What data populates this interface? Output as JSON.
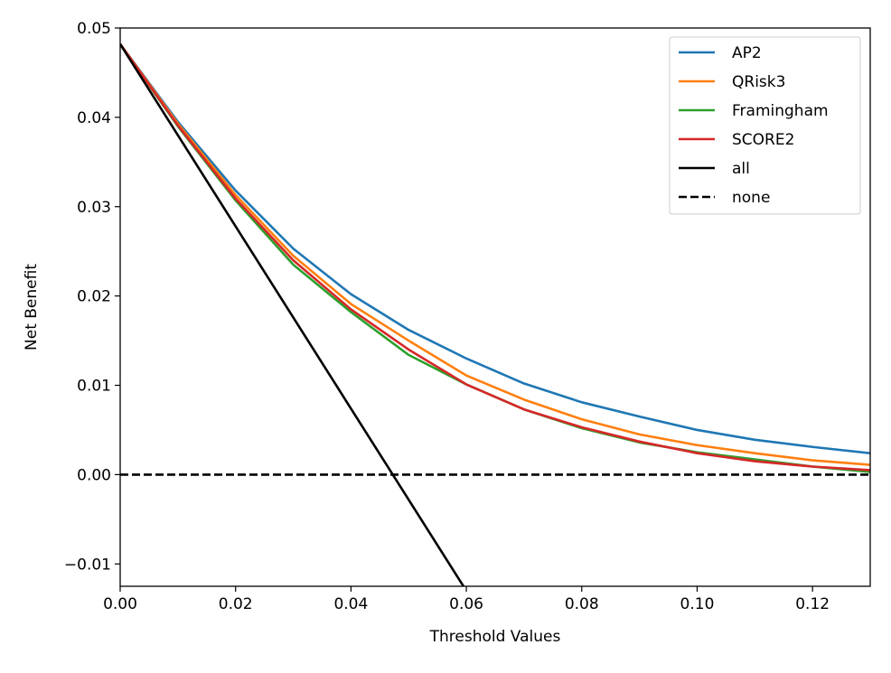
{
  "chart_data": {
    "type": "line",
    "title": "",
    "xlabel": "Threshold Values",
    "ylabel": "Net Benefit",
    "xlim": [
      0.0,
      0.13
    ],
    "ylim": [
      -0.0125,
      0.05
    ],
    "xticks": [
      0.0,
      0.02,
      0.04,
      0.06,
      0.08,
      0.1,
      0.12
    ],
    "xtick_labels": [
      "0.00",
      "0.02",
      "0.04",
      "0.06",
      "0.08",
      "0.10",
      "0.12"
    ],
    "yticks": [
      -0.01,
      0.0,
      0.01,
      0.02,
      0.03,
      0.04,
      0.05
    ],
    "ytick_labels": [
      "−0.01",
      "0.00",
      "0.01",
      "0.02",
      "0.03",
      "0.04",
      "0.05"
    ],
    "grid": false,
    "legend_position": "top-right",
    "x": [
      0.0,
      0.01,
      0.02,
      0.03,
      0.04,
      0.05,
      0.06,
      0.07,
      0.08,
      0.09,
      0.1,
      0.11,
      0.12,
      0.13
    ],
    "series": [
      {
        "name": "AP2",
        "color": "#1f77b4",
        "dash": "solid",
        "values": [
          0.0482,
          0.0395,
          0.0318,
          0.0253,
          0.0202,
          0.0162,
          0.013,
          0.0102,
          0.0081,
          0.0065,
          0.005,
          0.0039,
          0.0031,
          0.0024
        ]
      },
      {
        "name": "QRisk3",
        "color": "#ff7f0e",
        "dash": "solid",
        "values": [
          0.0482,
          0.0393,
          0.0313,
          0.0245,
          0.0191,
          0.015,
          0.0111,
          0.0084,
          0.0062,
          0.0045,
          0.0033,
          0.0024,
          0.0016,
          0.0011
        ]
      },
      {
        "name": "Framingham",
        "color": "#2ca02c",
        "dash": "solid",
        "values": [
          0.0482,
          0.039,
          0.0307,
          0.0235,
          0.0182,
          0.0134,
          0.0101,
          0.0073,
          0.0052,
          0.0036,
          0.0025,
          0.0017,
          0.0009,
          0.0003
        ]
      },
      {
        "name": "SCORE2",
        "color": "#d62728",
        "dash": "solid",
        "values": [
          0.0482,
          0.0391,
          0.0309,
          0.024,
          0.0185,
          0.014,
          0.0101,
          0.0073,
          0.0053,
          0.0037,
          0.0024,
          0.0015,
          0.0009,
          0.0005
        ]
      },
      {
        "name": "all",
        "color": "#000000",
        "dash": "solid",
        "x": [
          0.0,
          0.0595
        ],
        "values": [
          0.0482,
          -0.0125
        ]
      },
      {
        "name": "none",
        "color": "#000000",
        "dash": "dashed",
        "x": [
          0.0,
          0.13
        ],
        "values": [
          0.0,
          0.0
        ]
      }
    ]
  }
}
